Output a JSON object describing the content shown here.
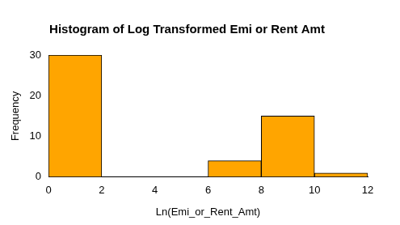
{
  "chart_data": {
    "type": "histogram",
    "title": "Histogram of Log Transformed Emi or Rent Amt",
    "x_label": "Ln(Emi_or_Rent_Amt)",
    "y_label": "Frequency",
    "bins": [
      0,
      2,
      4,
      6,
      8,
      10,
      12
    ],
    "values": [
      30,
      0,
      0,
      4,
      15,
      1
    ],
    "color": "#ffa500",
    "xlim": [
      0,
      12
    ],
    "xticks": [
      0,
      2,
      4,
      6,
      8,
      10,
      12
    ],
    "ylim": [
      0,
      30
    ],
    "yticks": [
      0,
      10,
      20,
      30
    ],
    "grid": false
  }
}
